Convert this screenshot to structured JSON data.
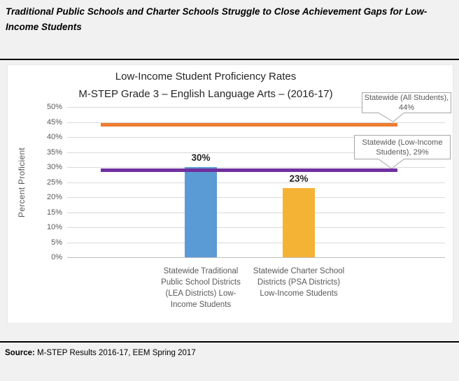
{
  "header": {
    "title": "Traditional Public Schools and Charter Schools Struggle to Close Achievement Gaps for Low-\nIncome Students"
  },
  "source": {
    "label": "Source:",
    "text": " M-STEP Results 2016-17, EEM Spring 2017"
  },
  "chart_data": {
    "type": "bar",
    "title": "Low-Income Student Proficiency Rates",
    "subtitle": "M-STEP Grade 3 – English Language Arts – (2016-17)",
    "ylabel": "Percent Proficient",
    "ylim": [
      0,
      50
    ],
    "ytick_step": 5,
    "ytick_labels": [
      "0%",
      "5%",
      "10%",
      "15%",
      "20%",
      "25%",
      "30%",
      "35%",
      "40%",
      "45%",
      "50%"
    ],
    "grid": true,
    "legend": "none",
    "categories": [
      "Statewide Traditional\nPublic School Districts\n(LEA Districts) Low-\nIncome Students",
      "Statewide Charter School\nDistricts (PSA Districts)\nLow-Income Students"
    ],
    "values": [
      30,
      23
    ],
    "data_labels": [
      "30%",
      "23%"
    ],
    "bar_colors": [
      "#5B9BD5",
      "#F5B335"
    ],
    "reference_lines": [
      {
        "label": "Statewide (All Students),\n44%",
        "value": 44,
        "color": "#ED7D31"
      },
      {
        "label": "Statewide (Low-Income\nStudents), 29%",
        "value": 29,
        "color": "#7030A0"
      }
    ]
  }
}
